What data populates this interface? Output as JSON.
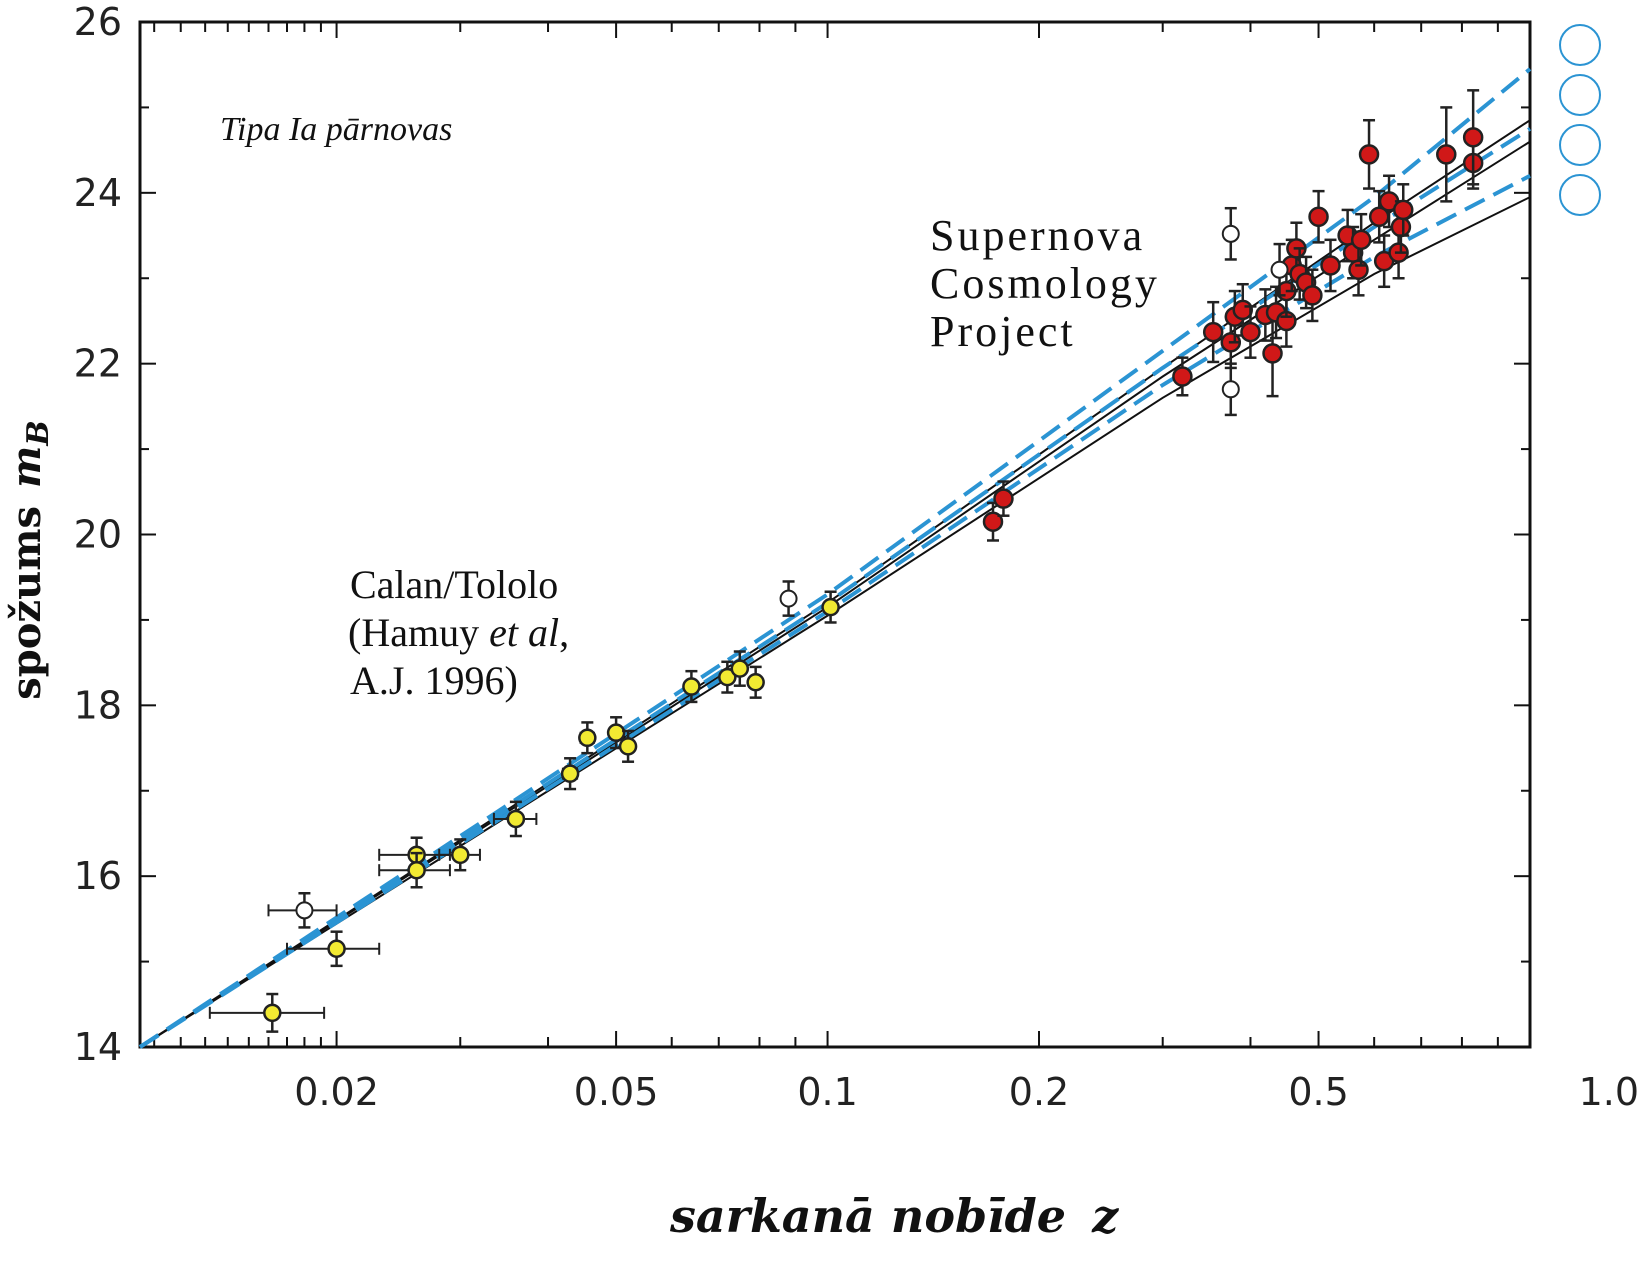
{
  "chart_data": {
    "type": "scatter",
    "title": "",
    "xlabel": "sarkanā nobīde",
    "xlabel_var": "z",
    "ylabel": "spožums",
    "ylabel_var": "m",
    "ylabel_sub": "B",
    "xscale": "log",
    "xlim": [
      0.0105,
      1.0
    ],
    "ylim": [
      14,
      26
    ],
    "x_ticks": [
      0.02,
      0.05,
      0.1,
      0.2,
      0.5,
      1.0
    ],
    "x_tick_labels": [
      "0.02",
      "0.05",
      "0.1",
      "0.2",
      "0.5",
      "1.0"
    ],
    "y_ticks": [
      14,
      16,
      18,
      20,
      22,
      24,
      26
    ],
    "y_tick_labels": [
      "14",
      "16",
      "18",
      "20",
      "22",
      "24",
      "26"
    ],
    "annotations": {
      "type_label": "Tipa Ia pārnovas",
      "scp_line1": "Supernova",
      "scp_line2": "Cosmology",
      "scp_line3": "Project",
      "ct_line1": "Calan/Tololo",
      "ct_line2_a": "(Hamuy ",
      "ct_line2_b": "et al",
      "ct_line2_c": ",",
      "ct_line3": "A.J. 1996)"
    },
    "colors": {
      "calan_tololo": "#f2ea32",
      "scp": "#d01818",
      "open": "#ffffff",
      "model_solid": "#111111",
      "model_dashed": "#2b94d3"
    },
    "series": [
      {
        "name": "Calan/Tololo",
        "color": "#f2ea32",
        "points": [
          {
            "x": 0.0162,
            "y": 14.4,
            "xerr": 0.003,
            "yerr": 0.22
          },
          {
            "x": 0.02,
            "y": 15.15,
            "xerr": 0.003,
            "yerr": 0.2
          },
          {
            "x": 0.026,
            "y": 16.25,
            "xerr": 0.003,
            "yerr": 0.2
          },
          {
            "x": 0.026,
            "y": 16.07,
            "xerr": 0.003,
            "yerr": 0.2
          },
          {
            "x": 0.03,
            "y": 16.25,
            "xerr": 0.002,
            "yerr": 0.18
          },
          {
            "x": 0.036,
            "y": 16.67,
            "xerr": 0.0025,
            "yerr": 0.2
          },
          {
            "x": 0.043,
            "y": 17.2,
            "xerr": 0.001,
            "yerr": 0.18
          },
          {
            "x": 0.0455,
            "y": 17.62,
            "xerr": 0.001,
            "yerr": 0.18
          },
          {
            "x": 0.05,
            "y": 17.68,
            "xerr": 0.001,
            "yerr": 0.18
          },
          {
            "x": 0.052,
            "y": 17.52,
            "xerr": 0.001,
            "yerr": 0.18
          },
          {
            "x": 0.064,
            "y": 18.22,
            "xerr": 0.001,
            "yerr": 0.18
          },
          {
            "x": 0.072,
            "y": 18.33,
            "xerr": 0.001,
            "yerr": 0.18
          },
          {
            "x": 0.075,
            "y": 18.43,
            "xerr": 0.001,
            "yerr": 0.2
          },
          {
            "x": 0.079,
            "y": 18.27,
            "xerr": 0.001,
            "yerr": 0.18
          },
          {
            "x": 0.101,
            "y": 19.15,
            "xerr": 0.001,
            "yerr": 0.18
          }
        ]
      },
      {
        "name": "Supernova Cosmology Project",
        "color": "#d01818",
        "points": [
          {
            "x": 0.172,
            "y": 20.15,
            "yerr": 0.22
          },
          {
            "x": 0.178,
            "y": 20.42,
            "yerr": 0.2
          },
          {
            "x": 0.32,
            "y": 21.85,
            "yerr": 0.22
          },
          {
            "x": 0.354,
            "y": 22.37,
            "yerr": 0.35
          },
          {
            "x": 0.375,
            "y": 22.25,
            "yerr": 0.3
          },
          {
            "x": 0.38,
            "y": 22.55,
            "yerr": 0.3
          },
          {
            "x": 0.39,
            "y": 22.63,
            "yerr": 0.3
          },
          {
            "x": 0.4,
            "y": 22.37,
            "yerr": 0.3
          },
          {
            "x": 0.42,
            "y": 22.57,
            "yerr": 0.3
          },
          {
            "x": 0.43,
            "y": 22.12,
            "yerr": 0.5
          },
          {
            "x": 0.435,
            "y": 22.6,
            "yerr": 0.3
          },
          {
            "x": 0.45,
            "y": 22.5,
            "yerr": 0.3
          },
          {
            "x": 0.45,
            "y": 22.85,
            "yerr": 0.3
          },
          {
            "x": 0.458,
            "y": 23.15,
            "yerr": 0.3
          },
          {
            "x": 0.465,
            "y": 23.35,
            "yerr": 0.3
          },
          {
            "x": 0.47,
            "y": 23.05,
            "yerr": 0.3
          },
          {
            "x": 0.48,
            "y": 22.95,
            "yerr": 0.3
          },
          {
            "x": 0.49,
            "y": 22.8,
            "yerr": 0.3
          },
          {
            "x": 0.5,
            "y": 23.72,
            "yerr": 0.3
          },
          {
            "x": 0.52,
            "y": 23.15,
            "yerr": 0.3
          },
          {
            "x": 0.55,
            "y": 23.5,
            "yerr": 0.3
          },
          {
            "x": 0.56,
            "y": 23.3,
            "yerr": 0.3
          },
          {
            "x": 0.57,
            "y": 23.1,
            "yerr": 0.3
          },
          {
            "x": 0.575,
            "y": 23.45,
            "yerr": 0.3
          },
          {
            "x": 0.59,
            "y": 24.45,
            "yerr": 0.4
          },
          {
            "x": 0.61,
            "y": 23.72,
            "yerr": 0.3
          },
          {
            "x": 0.62,
            "y": 23.2,
            "yerr": 0.3
          },
          {
            "x": 0.63,
            "y": 23.9,
            "yerr": 0.3
          },
          {
            "x": 0.65,
            "y": 23.3,
            "yerr": 0.3
          },
          {
            "x": 0.655,
            "y": 23.6,
            "yerr": 0.3
          },
          {
            "x": 0.66,
            "y": 23.8,
            "yerr": 0.3
          },
          {
            "x": 0.76,
            "y": 24.45,
            "yerr": 0.55
          },
          {
            "x": 0.83,
            "y": 24.35,
            "yerr": 0.3
          },
          {
            "x": 0.83,
            "y": 24.65,
            "yerr": 0.55
          }
        ]
      },
      {
        "name": "open",
        "color": "#ffffff",
        "points": [
          {
            "x": 0.018,
            "y": 15.6,
            "xerr": 0.002,
            "yerr": 0.2
          },
          {
            "x": 0.088,
            "y": 19.25,
            "xerr": 0.001,
            "yerr": 0.2
          },
          {
            "x": 0.375,
            "y": 23.52,
            "yerr": 0.3
          },
          {
            "x": 0.375,
            "y": 21.7,
            "yerr": 0.3
          },
          {
            "x": 0.44,
            "y": 23.1,
            "yerr": 0.3
          }
        ]
      }
    ],
    "models": [
      {
        "style": "solid",
        "color": "#111111",
        "y_at_z": {
          "0.0105": 14.0,
          "0.1": 19.05,
          "0.3": 21.6,
          "0.6": 23.05,
          "1.0": 23.95
        }
      },
      {
        "style": "solid",
        "color": "#111111",
        "y_at_z": {
          "0.0105": 14.0,
          "0.1": 19.15,
          "0.3": 21.85,
          "0.6": 23.45,
          "1.0": 24.6
        }
      },
      {
        "style": "solid",
        "color": "#111111",
        "y_at_z": {
          "0.0105": 14.0,
          "0.1": 19.2,
          "0.3": 21.95,
          "0.6": 23.65,
          "1.0": 24.85
        }
      },
      {
        "style": "dashed",
        "color": "#2b94d3",
        "y_at_z": {
          "0.0105": 14.0,
          "0.1": 19.1,
          "0.3": 21.75,
          "0.6": 23.25,
          "1.0": 24.2
        }
      },
      {
        "style": "dashed",
        "color": "#2b94d3",
        "y_at_z": {
          "0.0105": 14.0,
          "0.1": 19.2,
          "0.3": 21.95,
          "0.6": 23.6,
          "1.0": 24.75
        }
      },
      {
        "style": "dashed",
        "color": "#2b94d3",
        "y_at_z": {
          "0.0105": 14.0,
          "0.1": 19.3,
          "0.3": 22.15,
          "0.6": 23.95,
          "1.0": 25.45
        }
      }
    ]
  }
}
